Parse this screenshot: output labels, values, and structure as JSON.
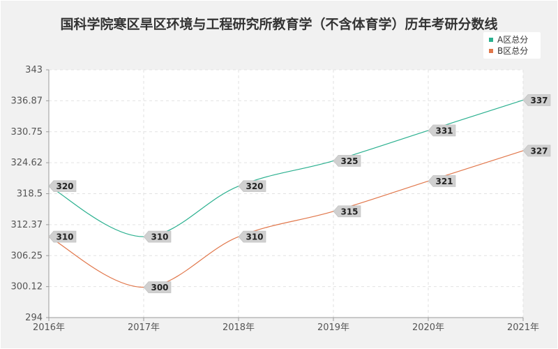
{
  "chart_data": {
    "type": "line",
    "title": "国科学院寒区旱区环境与工程研究所教育学（不含体育学）历年考研分数线",
    "categories": [
      "2016年",
      "2017年",
      "2018年",
      "2019年",
      "2020年",
      "2021年"
    ],
    "series": [
      {
        "name": "A区总分",
        "values": [
          320,
          310,
          320,
          325,
          331,
          337
        ],
        "color": "#2ab08f"
      },
      {
        "name": "B区总分",
        "values": [
          310,
          300,
          310,
          315,
          321,
          327
        ],
        "color": "#e1774b"
      }
    ],
    "ylim": [
      294,
      343
    ],
    "yticks": [
      "343",
      "336.87",
      "330.75",
      "324.62",
      "318.5",
      "312.37",
      "306.25",
      "300.12",
      "294"
    ],
    "xlabel": "",
    "ylabel": "",
    "grid": true,
    "legend_position": "top-right"
  }
}
